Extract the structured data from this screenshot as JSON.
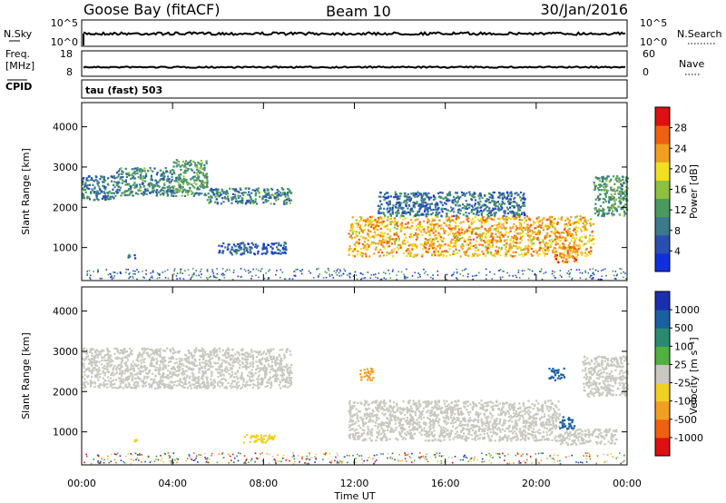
{
  "header": {
    "station": "Goose Bay (fitACF)",
    "beam": "Beam 10",
    "date": "30/Jan/2016"
  },
  "top_panels": {
    "nsky_label": "N.Sky",
    "nsky_ticks": [
      "10^5",
      "10^0"
    ],
    "nsearch_label": "N.Search",
    "nsearch_ticks": [
      "10^5",
      "10^0"
    ],
    "freq_label_1": "Freq.",
    "freq_label_2": "[MHz]",
    "freq_ticks": [
      "18",
      "8"
    ],
    "nave_label": "Nave",
    "nave_ticks": [
      "60",
      "0"
    ],
    "cpid_label": "CPID",
    "cpid_value": "tau (fast) 503"
  },
  "colors": {
    "power_scale": [
      "#1030e0",
      "#2a4fb0",
      "#3a7a8a",
      "#4a9a60",
      "#8cc040",
      "#f0e020",
      "#f0a020",
      "#f06010",
      "#e01010"
    ],
    "velocity_scale": [
      "#1a2fb0",
      "#1b5fa0",
      "#2a8a70",
      "#50b040",
      "#c8c8c0",
      "#f0d020",
      "#f0a020",
      "#f06010",
      "#e01010"
    ],
    "ground": "#c8c8c0"
  },
  "chart_data": [
    {
      "type": "heatmap",
      "name": "power",
      "xlabel": "Time UT",
      "ylabel": "Slant Range [km]",
      "xlim": [
        0,
        24
      ],
      "ylim": [
        180,
        4600
      ],
      "x_ticks": [
        0,
        4,
        8,
        12,
        16,
        20,
        24
      ],
      "x_tick_labels": [
        "00:00",
        "04:00",
        "08:00",
        "12:00",
        "16:00",
        "20:00",
        "00:00"
      ],
      "y_ticks": [
        1000,
        2000,
        3000,
        4000
      ],
      "y_tick_labels": [
        "1000",
        "2000",
        "3000",
        "4000"
      ],
      "colorbar_label": "Power [dB]",
      "colorbar_ticks": [
        "28",
        "24",
        "20",
        "16",
        "12",
        "8",
        "4"
      ],
      "colorbar_range": [
        0,
        32
      ],
      "regions": [
        {
          "t0": 0.0,
          "t1": 1.5,
          "r0": 2200,
          "r1": 2800,
          "level": 9
        },
        {
          "t0": 1.5,
          "t1": 4.0,
          "r0": 2300,
          "r1": 3000,
          "level": 10
        },
        {
          "t0": 4.0,
          "t1": 5.5,
          "r0": 2300,
          "r1": 3200,
          "level": 12
        },
        {
          "t0": 5.5,
          "t1": 9.2,
          "r0": 2100,
          "r1": 2500,
          "level": 10
        },
        {
          "t0": 2.0,
          "t1": 2.4,
          "r0": 750,
          "r1": 850,
          "level": 7
        },
        {
          "t0": 6.0,
          "t1": 9.0,
          "r0": 850,
          "r1": 1150,
          "level": 6
        },
        {
          "t0": 11.7,
          "t1": 22.5,
          "r0": 800,
          "r1": 1800,
          "level": 22
        },
        {
          "t0": 13.0,
          "t1": 19.5,
          "r0": 1800,
          "r1": 2400,
          "level": 8
        },
        {
          "t0": 20.8,
          "t1": 21.8,
          "r0": 650,
          "r1": 1100,
          "level": 24
        },
        {
          "t0": 22.5,
          "t1": 24.0,
          "r0": 1800,
          "r1": 2800,
          "level": 12
        }
      ]
    },
    {
      "type": "heatmap",
      "name": "velocity",
      "xlabel": "Time UT",
      "ylabel": "Slant Range [km]",
      "xlim": [
        0,
        24
      ],
      "ylim": [
        180,
        4600
      ],
      "x_ticks": [
        0,
        4,
        8,
        12,
        16,
        20,
        24
      ],
      "x_tick_labels": [
        "00:00",
        "04:00",
        "08:00",
        "12:00",
        "16:00",
        "20:00",
        "00:00"
      ],
      "y_ticks": [
        1000,
        2000,
        3000,
        4000
      ],
      "y_tick_labels": [
        "1000",
        "2000",
        "3000",
        "4000"
      ],
      "colorbar_label": "Velocity [m s⁻¹]",
      "colorbar_ticks": [
        "1000",
        "500",
        "100",
        "25",
        "-25",
        "-100",
        "-500",
        "-1000"
      ],
      "regions": [
        {
          "t0": 0.0,
          "t1": 9.2,
          "r0": 2100,
          "r1": 3100,
          "kind": "ground"
        },
        {
          "t0": 11.7,
          "t1": 21.0,
          "r0": 800,
          "r1": 1800,
          "kind": "ground"
        },
        {
          "t0": 21.0,
          "t1": 23.5,
          "r0": 700,
          "r1": 1100,
          "kind": "ground"
        },
        {
          "t0": 22.0,
          "t1": 24.0,
          "r0": 1900,
          "r1": 2900,
          "kind": "ground"
        },
        {
          "t0": 12.2,
          "t1": 12.8,
          "r0": 2300,
          "r1": 2600,
          "velocity": -200
        },
        {
          "t0": 20.5,
          "t1": 21.2,
          "r0": 2300,
          "r1": 2600,
          "velocity": 150
        },
        {
          "t0": 21.0,
          "t1": 21.7,
          "r0": 1100,
          "r1": 1400,
          "velocity": 120
        },
        {
          "t0": 7.0,
          "t1": 8.5,
          "r0": 750,
          "r1": 950,
          "velocity": -80
        },
        {
          "t0": 2.0,
          "t1": 2.4,
          "r0": 750,
          "r1": 850,
          "velocity": -60
        }
      ]
    }
  ]
}
